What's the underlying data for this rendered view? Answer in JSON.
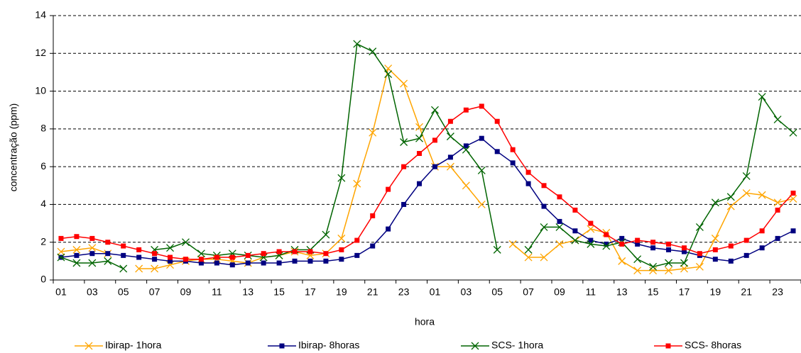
{
  "chart_data": {
    "type": "line",
    "x_label": "hora",
    "y_label": "concentração (ppm)",
    "categories": [
      "01",
      null,
      "03",
      null,
      "05",
      null,
      "07",
      null,
      "09",
      null,
      "11",
      null,
      "13",
      null,
      "15",
      null,
      "17",
      null,
      "19",
      null,
      "21",
      null,
      "23",
      null,
      "01",
      null,
      "03",
      null,
      "05",
      null,
      "07",
      null,
      "09",
      null,
      "11",
      null,
      "13",
      null,
      "15",
      null,
      "17",
      null,
      "19",
      null,
      "21",
      null,
      "23",
      null
    ],
    "ylim": [
      0,
      14
    ],
    "yticks": [
      0,
      2,
      4,
      6,
      8,
      10,
      12,
      14
    ],
    "grid": true,
    "series": [
      {
        "name": "Ibirap- 1hora",
        "color": "#ffa500",
        "marker": "x",
        "values": [
          1.5,
          1.6,
          1.7,
          1.4,
          null,
          0.6,
          0.6,
          0.8,
          1.0,
          1.1,
          1.1,
          1.0,
          0.9,
          1.2,
          1.3,
          1.5,
          1.3,
          1.4,
          2.2,
          5.1,
          7.8,
          11.2,
          10.4,
          8.1,
          6.0,
          6.0,
          5.0,
          4.0,
          null,
          1.9,
          1.2,
          1.2,
          1.9,
          2.1,
          2.7,
          2.5,
          1.0,
          0.5,
          0.5,
          0.5,
          0.6,
          0.7,
          2.2,
          3.9,
          4.6,
          4.5,
          4.1,
          4.3
        ]
      },
      {
        "name": "Ibirap- 8horas",
        "color": "#000080",
        "marker": "square",
        "values": [
          1.2,
          1.3,
          1.4,
          1.4,
          1.3,
          1.2,
          1.1,
          1.0,
          1.0,
          0.9,
          0.9,
          0.8,
          0.9,
          0.9,
          0.9,
          1.0,
          1.0,
          1.0,
          1.1,
          1.3,
          1.8,
          2.7,
          4.0,
          5.1,
          6.0,
          6.5,
          7.1,
          7.5,
          6.8,
          6.2,
          5.1,
          3.9,
          3.1,
          2.6,
          2.1,
          1.9,
          2.2,
          1.9,
          1.7,
          1.6,
          1.5,
          1.3,
          1.1,
          1.0,
          1.3,
          1.7,
          2.2,
          2.6
        ]
      },
      {
        "name": "SCS- 1hora",
        "color": "#006400",
        "marker": "x",
        "values": [
          1.2,
          0.9,
          0.9,
          1.0,
          0.6,
          null,
          1.6,
          1.7,
          2.0,
          1.4,
          1.3,
          1.4,
          1.3,
          1.2,
          1.3,
          1.6,
          1.6,
          2.4,
          5.4,
          12.5,
          12.1,
          10.9,
          7.3,
          7.5,
          9.0,
          7.6,
          6.9,
          5.8,
          1.6,
          null,
          1.6,
          2.8,
          2.8,
          2.1,
          1.9,
          1.8,
          2.0,
          1.1,
          0.7,
          0.9,
          0.9,
          2.8,
          4.1,
          4.4,
          5.5,
          9.7,
          8.5,
          7.8
        ]
      },
      {
        "name": "SCS- 8horas",
        "color": "#ff0000",
        "marker": "square",
        "values": [
          2.2,
          2.3,
          2.2,
          2.0,
          1.8,
          1.6,
          1.4,
          1.2,
          1.1,
          1.1,
          1.2,
          1.2,
          1.3,
          1.4,
          1.5,
          1.5,
          1.5,
          1.4,
          1.6,
          2.1,
          3.4,
          4.8,
          6.0,
          6.7,
          7.4,
          8.4,
          9.0,
          9.2,
          8.4,
          6.9,
          5.7,
          5.0,
          4.4,
          3.7,
          3.0,
          2.4,
          1.9,
          2.1,
          2.0,
          1.9,
          1.7,
          1.4,
          1.6,
          1.8,
          2.1,
          2.6,
          3.7,
          4.6
        ]
      }
    ]
  }
}
